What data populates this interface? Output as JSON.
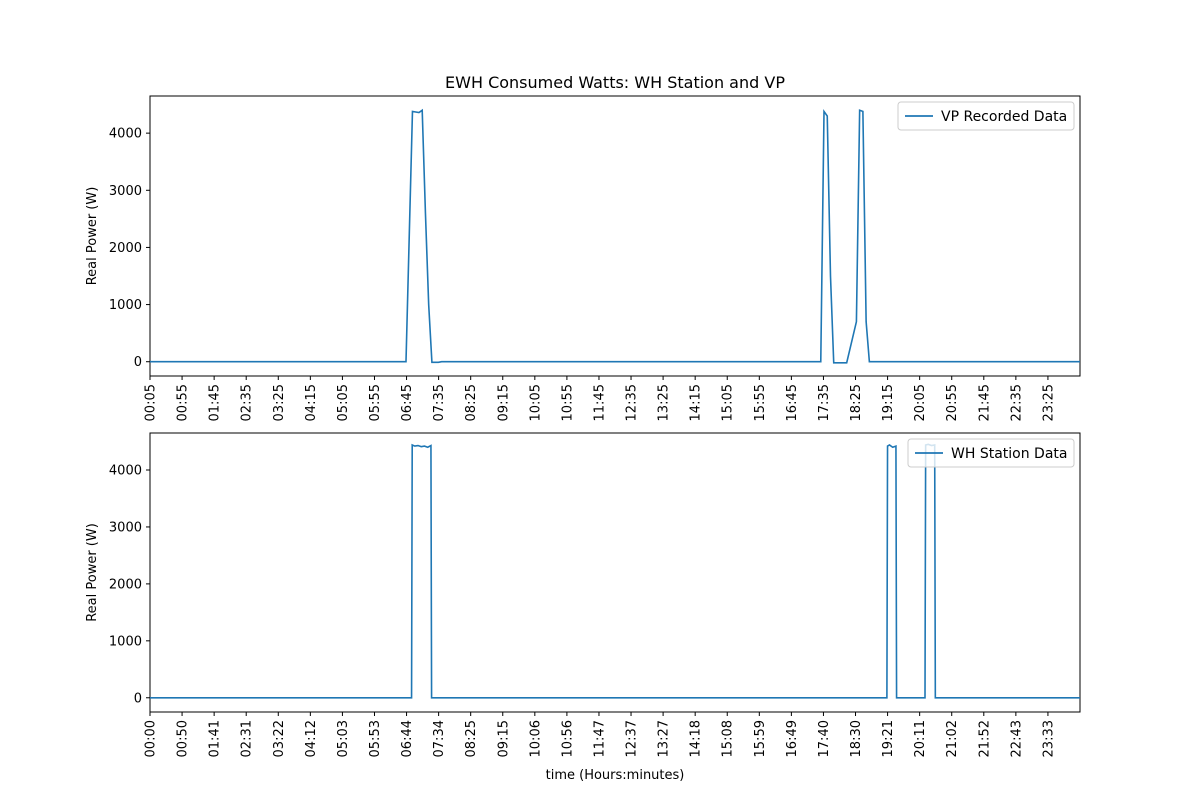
{
  "figure": {
    "title": "EWH Consumed Watts: WH Station and VP"
  },
  "chart_data": [
    {
      "type": "line",
      "title": "EWH Consumed Watts: WH Station and VP",
      "xlabel": "",
      "ylabel": "Real Power (W)",
      "ylim": [
        -250,
        4650
      ],
      "yticks": [
        0,
        1000,
        2000,
        3000,
        4000
      ],
      "xlim": [
        5,
        1440
      ],
      "xtick_labels": [
        "00:05",
        "00:55",
        "01:45",
        "02:35",
        "03:25",
        "04:15",
        "05:05",
        "05:55",
        "06:45",
        "07:35",
        "08:25",
        "09:15",
        "10:05",
        "10:55",
        "11:45",
        "12:35",
        "13:25",
        "14:15",
        "15:05",
        "15:55",
        "16:45",
        "17:35",
        "18:25",
        "19:15",
        "20:05",
        "20:55",
        "21:45",
        "22:35",
        "23:25"
      ],
      "legend": {
        "position": "top-right",
        "entries": [
          "VP Recorded Data"
        ]
      },
      "series": [
        {
          "name": "VP Recorded Data",
          "color": "#1f77b4",
          "x": [
            5,
            400,
            410,
            415,
            420,
            425,
            430,
            435,
            440,
            445,
            450,
            455,
            1040,
            1045,
            1050,
            1055,
            1060,
            1080,
            1095,
            1100,
            1105,
            1110,
            1115,
            1120,
            1440
          ],
          "y": [
            0,
            0,
            4380,
            4370,
            4360,
            4400,
            2600,
            1000,
            -10,
            -10,
            -10,
            0,
            0,
            4380,
            4300,
            1500,
            -20,
            -20,
            700,
            4400,
            4380,
            700,
            0,
            0,
            0
          ]
        }
      ]
    },
    {
      "type": "line",
      "title": "",
      "xlabel": "time (Hours:minutes)",
      "ylabel": "Real Power (W)",
      "ylim": [
        -250,
        4650
      ],
      "yticks": [
        0,
        1000,
        2000,
        3000,
        4000
      ],
      "xlim": [
        0,
        1440
      ],
      "xtick_labels": [
        "00:00",
        "00:50",
        "01:41",
        "02:31",
        "03:22",
        "04:12",
        "05:03",
        "05:53",
        "06:44",
        "07:34",
        "08:25",
        "09:15",
        "10:06",
        "10:56",
        "11:47",
        "12:37",
        "13:27",
        "14:18",
        "15:08",
        "15:59",
        "16:49",
        "17:40",
        "18:30",
        "19:21",
        "20:11",
        "21:02",
        "21:52",
        "22:43",
        "23:33"
      ],
      "legend": {
        "position": "top-right",
        "entries": [
          "WH Station Data"
        ]
      },
      "series": [
        {
          "name": "WH Station Data",
          "color": "#1f77b4",
          "x": [
            0,
            405,
            406,
            410,
            415,
            420,
            425,
            430,
            435,
            436,
            437,
            1141,
            1142,
            1145,
            1150,
            1155,
            1156,
            1157,
            1200,
            1201,
            1205,
            1210,
            1215,
            1216,
            1217,
            1440
          ],
          "y": [
            0,
            0,
            4440,
            4420,
            4430,
            4410,
            4420,
            4400,
            4430,
            0,
            0,
            0,
            4420,
            4440,
            4400,
            4420,
            0,
            0,
            0,
            4440,
            4450,
            4430,
            4440,
            0,
            0,
            0
          ]
        }
      ]
    }
  ]
}
